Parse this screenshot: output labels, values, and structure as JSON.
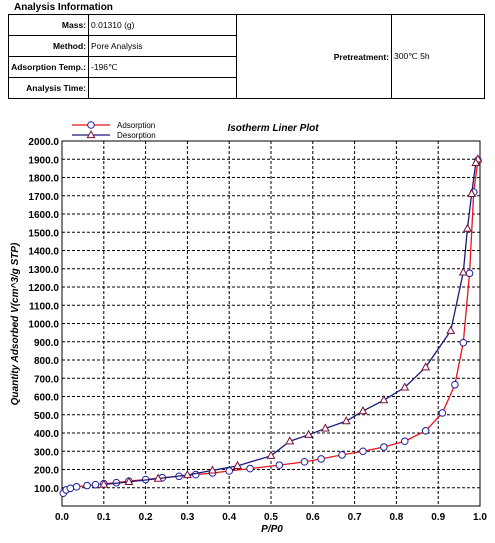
{
  "analysis_info": {
    "heading": "Analysis Information",
    "rows": [
      {
        "label": "Mass:",
        "value": "0.01310 (g)"
      },
      {
        "label": "Method:",
        "value": "Pore Analysis"
      },
      {
        "label": "Adsorption Temp.:",
        "value": "-196℃"
      },
      {
        "label": "Analysis Time:",
        "value": ""
      }
    ],
    "pretreatment_label": "Pretreatment:",
    "pretreatment_value": "300℃ 5h"
  },
  "chart_data": {
    "type": "line",
    "title": "Isotherm Liner Plot",
    "xlabel": "P/P0",
    "ylabel": "Quantity Adsorbed V(cm^3/g STP)",
    "xlim": [
      0.0,
      1.0
    ],
    "ylim": [
      0,
      2000
    ],
    "x_ticks": [
      "0.0",
      "0.1",
      "0.2",
      "0.3",
      "0.4",
      "0.5",
      "0.6",
      "0.7",
      "0.8",
      "0.9",
      "1.0"
    ],
    "y_ticks": [
      "100.0",
      "200.0",
      "300.0",
      "400.0",
      "500.0",
      "600.0",
      "700.0",
      "800.0",
      "900.0",
      "1000.0",
      "1100.0",
      "1200.0",
      "1300.0",
      "1400.0",
      "1500.0",
      "1600.0",
      "1700.0",
      "1800.0",
      "1900.0",
      "2000.0"
    ],
    "grid": true,
    "legend_position": "top-left",
    "series": [
      {
        "name": "Adsorption",
        "marker": "circle",
        "line_color": "#e8141c",
        "marker_color": "#2020a0",
        "x": [
          0.003,
          0.01,
          0.02,
          0.035,
          0.06,
          0.08,
          0.1,
          0.13,
          0.16,
          0.2,
          0.24,
          0.28,
          0.32,
          0.36,
          0.4,
          0.45,
          0.52,
          0.58,
          0.62,
          0.67,
          0.72,
          0.77,
          0.82,
          0.87,
          0.91,
          0.94,
          0.96,
          0.975,
          0.985,
          0.995
        ],
        "y": [
          70,
          88,
          97,
          105,
          112,
          117,
          122,
          128,
          136,
          145,
          155,
          163,
          172,
          181,
          192,
          205,
          224,
          242,
          258,
          280,
          300,
          323,
          355,
          412,
          510,
          665,
          895,
          1275,
          1720,
          1895
        ]
      },
      {
        "name": "Desorption",
        "marker": "triangle",
        "line_color": "#1a1a7a",
        "marker_color": "#7a1038",
        "x": [
          0.995,
          0.99,
          0.98,
          0.97,
          0.96,
          0.93,
          0.87,
          0.82,
          0.77,
          0.72,
          0.68,
          0.63,
          0.59,
          0.545,
          0.5,
          0.42,
          0.36,
          0.3,
          0.23,
          0.16,
          0.1
        ],
        "y": [
          1900,
          1880,
          1710,
          1520,
          1280,
          960,
          760,
          650,
          580,
          520,
          465,
          425,
          390,
          355,
          275,
          220,
          195,
          170,
          150,
          132,
          118
        ]
      }
    ]
  }
}
